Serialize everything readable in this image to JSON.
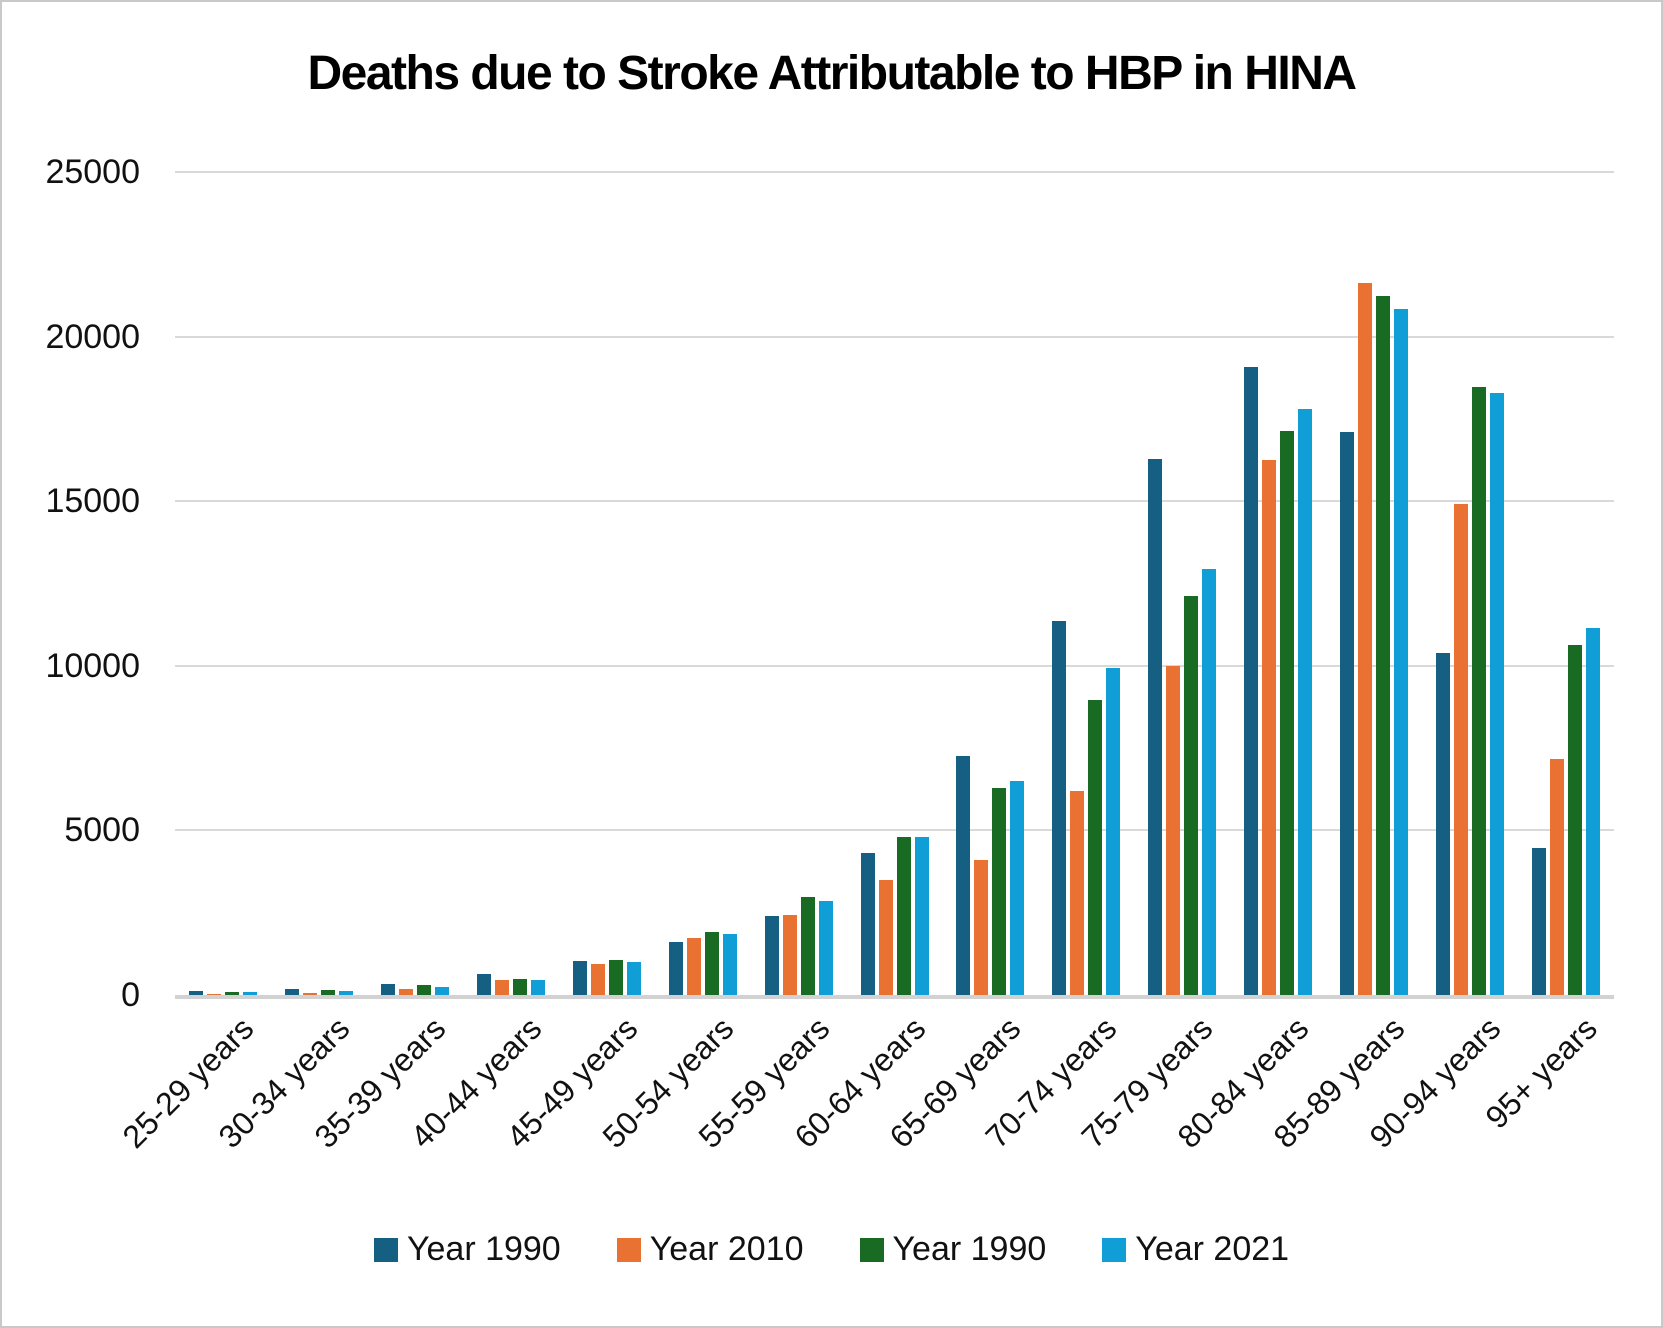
{
  "chart_data": {
    "type": "bar",
    "title": "Deaths due to Stroke Attributable to HBP in HINA",
    "xlabel": "",
    "ylabel": "",
    "ylim": [
      0,
      25000
    ],
    "y_ticks": [
      0,
      5000,
      10000,
      15000,
      20000,
      25000
    ],
    "grid": true,
    "legend_position": "bottom",
    "categories": [
      "25-29 years",
      "30-34 years",
      "35-39 years",
      "40-44 years",
      "45-49 years",
      "50-54 years",
      "55-59 years",
      "60-64 years",
      "65-69 years",
      "70-74 years",
      "75-79 years",
      "80-84 years",
      "85-89 years",
      "90-94 years",
      "95+ years"
    ],
    "series": [
      {
        "name": "Year 1990",
        "color": "#156082",
        "values": [
          120,
          180,
          340,
          645,
          1025,
          1610,
          2410,
          4310,
          7270,
          11350,
          16280,
          19080,
          17090,
          10390,
          4460
        ]
      },
      {
        "name": "Year 2010",
        "color": "#E97132",
        "values": [
          40,
          75,
          170,
          445,
          935,
          1740,
          2420,
          3500,
          4110,
          6200,
          9980,
          16240,
          21630,
          14930,
          7160
        ]
      },
      {
        "name": "Year 1990",
        "color": "#196B24",
        "values": [
          90,
          140,
          290,
          475,
          1065,
          1900,
          2980,
          4790,
          6280,
          8970,
          12120,
          17120,
          21230,
          18470,
          10640
        ]
      },
      {
        "name": "Year 2021",
        "color": "#0F9ED5",
        "values": [
          100,
          135,
          240,
          465,
          1000,
          1860,
          2850,
          4810,
          6500,
          9930,
          12930,
          17810,
          20850,
          18300,
          11140
        ]
      }
    ]
  }
}
